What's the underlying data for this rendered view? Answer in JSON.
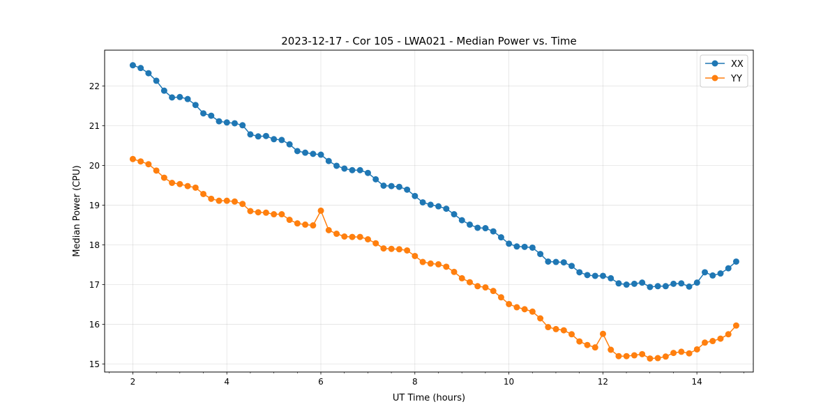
{
  "chart_data": {
    "type": "line",
    "title": "2023-12-17 - Cor 105 - LWA021 - Median Power vs. Time",
    "xlabel": "UT Time (hours)",
    "ylabel": "Median Power (CPU)",
    "xlim": [
      1.4,
      15.2
    ],
    "ylim": [
      14.8,
      22.9
    ],
    "xticks": [
      2,
      4,
      6,
      8,
      10,
      12,
      14
    ],
    "yticks": [
      15,
      16,
      17,
      18,
      19,
      20,
      21,
      22
    ],
    "grid": true,
    "legend_position": "upper right",
    "x_start": 2.0,
    "x_step": 0.1667,
    "series": [
      {
        "name": "XX",
        "color": "#1f77b4",
        "values": [
          22.52,
          22.45,
          22.32,
          22.13,
          21.88,
          21.71,
          21.72,
          21.67,
          21.52,
          21.31,
          21.25,
          21.11,
          21.08,
          21.06,
          21.01,
          20.78,
          20.73,
          20.74,
          20.66,
          20.64,
          20.53,
          20.36,
          20.32,
          20.29,
          20.27,
          20.11,
          19.99,
          19.92,
          19.88,
          19.88,
          19.81,
          19.65,
          19.49,
          19.48,
          19.46,
          19.39,
          19.23,
          19.07,
          19.01,
          18.97,
          18.91,
          18.77,
          18.62,
          18.51,
          18.43,
          18.42,
          18.34,
          18.19,
          18.03,
          17.96,
          17.95,
          17.93,
          17.77,
          17.58,
          17.57,
          17.56,
          17.47,
          17.31,
          17.24,
          17.22,
          17.22,
          17.16,
          17.03,
          17.0,
          17.02,
          17.05,
          16.94,
          16.96,
          16.96,
          17.02,
          17.03,
          16.95,
          17.05,
          17.31,
          17.23,
          17.28,
          17.41,
          17.58
        ]
      },
      {
        "name": "YY",
        "color": "#ff7f0e",
        "values": [
          20.16,
          20.1,
          20.03,
          19.87,
          19.69,
          19.56,
          19.53,
          19.48,
          19.44,
          19.28,
          19.16,
          19.11,
          19.11,
          19.09,
          19.03,
          18.85,
          18.82,
          18.81,
          18.77,
          18.77,
          18.63,
          18.54,
          18.51,
          18.49,
          18.86,
          18.37,
          18.28,
          18.21,
          18.2,
          18.2,
          18.14,
          18.04,
          17.91,
          17.9,
          17.89,
          17.86,
          17.72,
          17.57,
          17.53,
          17.51,
          17.45,
          17.32,
          17.16,
          17.06,
          16.96,
          16.93,
          16.84,
          16.68,
          16.51,
          16.43,
          16.38,
          16.32,
          16.15,
          15.93,
          15.88,
          15.85,
          15.75,
          15.57,
          15.48,
          15.42,
          15.76,
          15.36,
          15.2,
          15.2,
          15.22,
          15.25,
          15.14,
          15.15,
          15.19,
          15.28,
          15.31,
          15.27,
          15.37,
          15.54,
          15.58,
          15.64,
          15.75,
          15.97
        ]
      }
    ]
  }
}
